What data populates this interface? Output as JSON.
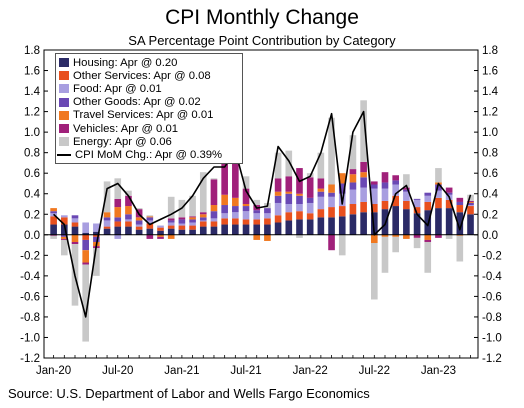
{
  "title": "CPI Monthly Change",
  "subtitle": "SA Percentage Point Contribution by Category",
  "source": "Source: U.S. Department of Labor and Wells Fargo Economics",
  "legend": [
    {
      "label": "Housing: Apr @ 0.20",
      "color": "#2b2a66",
      "kind": "bar"
    },
    {
      "label": "Other Services: Apr @ 0.08",
      "color": "#e8501e",
      "kind": "bar"
    },
    {
      "label": "Food: Apr @ 0.01",
      "color": "#a89ee0",
      "kind": "bar"
    },
    {
      "label": "Other Goods: Apr @ 0.02",
      "color": "#6a48b4",
      "kind": "bar"
    },
    {
      "label": "Travel Services: Apr @ 0.01",
      "color": "#f07820",
      "kind": "bar"
    },
    {
      "label": "Vehicles: Apr @ 0.01",
      "color": "#a0207a",
      "kind": "bar"
    },
    {
      "label": "Energy: Apr @ 0.06",
      "color": "#c8c8c8",
      "kind": "bar"
    },
    {
      "label": "CPI MoM Chg.: Apr @ 0.39%",
      "color": "#000000",
      "kind": "line"
    }
  ],
  "chart_data": {
    "type": "bar",
    "stacked": true,
    "ylim": [
      -1.2,
      1.8
    ],
    "yticks": [
      "1.8",
      "1.6",
      "1.4",
      "1.2",
      "1.0",
      "0.8",
      "0.6",
      "0.4",
      "0.2",
      "0.0",
      "-0.2",
      "-0.4",
      "-0.6",
      "-0.8",
      "-1.0",
      "-1.2"
    ],
    "xticks": [
      {
        "label": "Jan-20",
        "index": 0
      },
      {
        "label": "Jul-20",
        "index": 6
      },
      {
        "label": "Jan-21",
        "index": 12
      },
      {
        "label": "Jul-21",
        "index": 18
      },
      {
        "label": "Jan-22",
        "index": 24
      },
      {
        "label": "Jul-22",
        "index": 30
      },
      {
        "label": "Jan-23",
        "index": 36
      }
    ],
    "categories": [
      "Jan-20",
      "Feb-20",
      "Mar-20",
      "Apr-20",
      "May-20",
      "Jun-20",
      "Jul-20",
      "Aug-20",
      "Sep-20",
      "Oct-20",
      "Nov-20",
      "Dec-20",
      "Jan-21",
      "Feb-21",
      "Mar-21",
      "Apr-21",
      "May-21",
      "Jun-21",
      "Jul-21",
      "Aug-21",
      "Sep-21",
      "Oct-21",
      "Nov-21",
      "Dec-21",
      "Jan-22",
      "Feb-22",
      "Mar-22",
      "Apr-22",
      "May-22",
      "Jun-22",
      "Jul-22",
      "Aug-22",
      "Sep-22",
      "Oct-22",
      "Nov-22",
      "Dec-22",
      "Jan-23",
      "Feb-23",
      "Mar-23",
      "Apr-23"
    ],
    "series": [
      {
        "name": "Housing",
        "values": [
          0.1,
          0.1,
          0.08,
          0.02,
          0.03,
          0.06,
          0.08,
          0.08,
          0.05,
          0.06,
          0.04,
          0.06,
          0.05,
          0.05,
          0.08,
          0.08,
          0.1,
          0.1,
          0.1,
          0.1,
          0.1,
          0.12,
          0.14,
          0.15,
          0.15,
          0.17,
          0.17,
          0.18,
          0.2,
          0.22,
          0.22,
          0.25,
          0.28,
          0.25,
          0.21,
          0.24,
          0.26,
          0.26,
          0.22,
          0.2
        ]
      },
      {
        "name": "Other Services",
        "values": [
          0.08,
          0.07,
          0.04,
          -0.05,
          -0.02,
          0.02,
          0.05,
          0.05,
          0.03,
          0.05,
          0.03,
          0.03,
          0.04,
          0.04,
          0.05,
          0.05,
          0.06,
          0.06,
          0.05,
          0.05,
          0.06,
          0.07,
          0.08,
          0.08,
          0.06,
          0.08,
          0.1,
          0.1,
          0.1,
          0.1,
          0.08,
          0.08,
          0.1,
          0.08,
          0.06,
          0.08,
          0.1,
          0.08,
          0.07,
          0.08
        ]
      },
      {
        "name": "Food",
        "values": [
          0.03,
          0.02,
          0.04,
          0.1,
          0.08,
          0.06,
          -0.04,
          0.02,
          0.02,
          0.03,
          0.02,
          0.03,
          0.02,
          0.03,
          0.01,
          0.03,
          0.05,
          0.06,
          0.08,
          0.06,
          0.05,
          0.12,
          0.08,
          0.07,
          0.1,
          0.12,
          0.1,
          0.12,
          0.14,
          0.14,
          0.15,
          0.12,
          0.11,
          0.09,
          0.07,
          0.06,
          0.07,
          0.05,
          0.0,
          0.01
        ]
      },
      {
        "name": "Other Goods",
        "values": [
          0.02,
          -0.02,
          0.03,
          -0.1,
          -0.05,
          0.03,
          0.04,
          0.05,
          0.04,
          0.03,
          0.0,
          0.02,
          0.04,
          0.03,
          0.03,
          0.07,
          0.08,
          0.06,
          0.05,
          0.03,
          0.05,
          0.07,
          0.1,
          0.08,
          0.05,
          0.05,
          0.04,
          0.1,
          0.07,
          0.1,
          0.04,
          0.06,
          0.04,
          0.02,
          0.01,
          0.03,
          0.06,
          0.02,
          0.03,
          0.02
        ]
      },
      {
        "name": "Travel Services",
        "values": [
          0.03,
          -0.02,
          -0.07,
          -0.12,
          -0.04,
          0.05,
          0.1,
          0.08,
          0.03,
          0.01,
          -0.02,
          -0.04,
          0.0,
          0.02,
          0.03,
          0.06,
          0.1,
          0.08,
          0.02,
          -0.05,
          -0.06,
          0.04,
          0.02,
          0.02,
          0.0,
          0.03,
          0.08,
          0.1,
          0.08,
          0.05,
          -0.08,
          -0.02,
          -0.02,
          -0.04,
          0.0,
          -0.05,
          0.02,
          0.0,
          -0.01,
          0.01
        ]
      },
      {
        "name": "Vehicles",
        "values": [
          -0.01,
          -0.01,
          -0.02,
          -0.02,
          -0.02,
          0.0,
          0.08,
          0.1,
          0.08,
          -0.04,
          -0.02,
          0.02,
          0.02,
          0.01,
          0.02,
          0.25,
          0.3,
          0.35,
          0.15,
          0.05,
          0.0,
          0.13,
          0.15,
          0.25,
          0.2,
          0.1,
          -0.15,
          0.0,
          0.05,
          0.1,
          0.03,
          0.1,
          0.05,
          0.02,
          -0.03,
          -0.02,
          -0.03,
          0.05,
          0.04,
          0.01
        ]
      },
      {
        "name": "Energy",
        "values": [
          -0.03,
          -0.15,
          -0.6,
          -0.75,
          -0.27,
          0.3,
          0.2,
          0.05,
          0.01,
          0.01,
          0.0,
          0.21,
          0.17,
          0.2,
          0.39,
          0.01,
          0.06,
          0.14,
          0.12,
          0.05,
          0.05,
          0.25,
          0.25,
          -0.03,
          0.04,
          0.25,
          0.65,
          -0.2,
          0.33,
          0.6,
          -0.55,
          -0.35,
          -0.15,
          0.13,
          -0.1,
          -0.3,
          0.14,
          -0.04,
          -0.25,
          0.06
        ]
      }
    ],
    "line": {
      "name": "CPI MoM Chg.",
      "values": [
        0.2,
        0.1,
        -0.4,
        -0.8,
        -0.1,
        0.45,
        0.5,
        0.38,
        0.2,
        0.1,
        0.15,
        0.2,
        0.26,
        0.38,
        0.55,
        0.66,
        0.66,
        0.82,
        0.43,
        0.26,
        0.28,
        0.86,
        0.72,
        0.52,
        0.57,
        0.8,
        1.18,
        0.3,
        1.0,
        1.2,
        0.0,
        0.1,
        0.4,
        0.48,
        0.2,
        0.09,
        0.5,
        0.37,
        0.05,
        0.39
      ]
    }
  }
}
